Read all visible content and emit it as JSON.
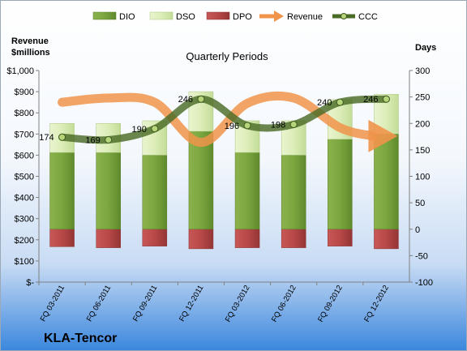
{
  "chart_data": {
    "type": "bar",
    "title": "Quarterly Periods",
    "company": "KLA-Tencor",
    "left_axis": {
      "label_line1": "Revenue",
      "label_line2": "$millions",
      "min": 0,
      "max": 1000,
      "step": 100,
      "tick_labels": [
        "$-",
        "$100",
        "$200",
        "$300",
        "$400",
        "$500",
        "$600",
        "$700",
        "$800",
        "$900",
        "$1,000"
      ]
    },
    "right_axis": {
      "label": "Days",
      "min": -100,
      "max": 300,
      "step": 50
    },
    "categories": [
      "FQ 03-2011",
      "FQ 06-2011",
      "FQ 09-2011",
      "FQ 12-2011",
      "FQ 03-2012",
      "FQ 06-2012",
      "FQ 09-2012",
      "FQ 12-2012"
    ],
    "series": [
      {
        "name": "DIO",
        "axis": "right",
        "kind": "bar",
        "values": [
          145,
          145,
          140,
          185,
          145,
          140,
          170,
          180
        ],
        "color": "#7aa640"
      },
      {
        "name": "DSO",
        "axis": "right",
        "kind": "bar-stacked",
        "values": [
          55,
          55,
          65,
          75,
          60,
          65,
          75,
          75
        ],
        "color": "#dcedb8"
      },
      {
        "name": "DPO",
        "axis": "right",
        "kind": "bar-negative",
        "values": [
          -33,
          -35,
          -32,
          -37,
          -35,
          -35,
          -32,
          -37
        ],
        "color": "#b84848"
      },
      {
        "name": "Revenue",
        "axis": "left",
        "kind": "line-arrow",
        "values": [
          850,
          870,
          850,
          660,
          845,
          870,
          730,
          690
        ],
        "color": "#f0944a"
      },
      {
        "name": "CCC",
        "axis": "right",
        "kind": "line-marker",
        "values": [
          174,
          169,
          190,
          246,
          196,
          198,
          240,
          246
        ],
        "color": "#4a6b26"
      }
    ],
    "data_labels": [
      "174",
      "169",
      "190",
      "246",
      "196",
      "198",
      "240",
      "246"
    ],
    "legend": [
      "DIO",
      "DSO",
      "DPO",
      "Revenue",
      "CCC"
    ],
    "legend_position": "top",
    "grid": false
  }
}
